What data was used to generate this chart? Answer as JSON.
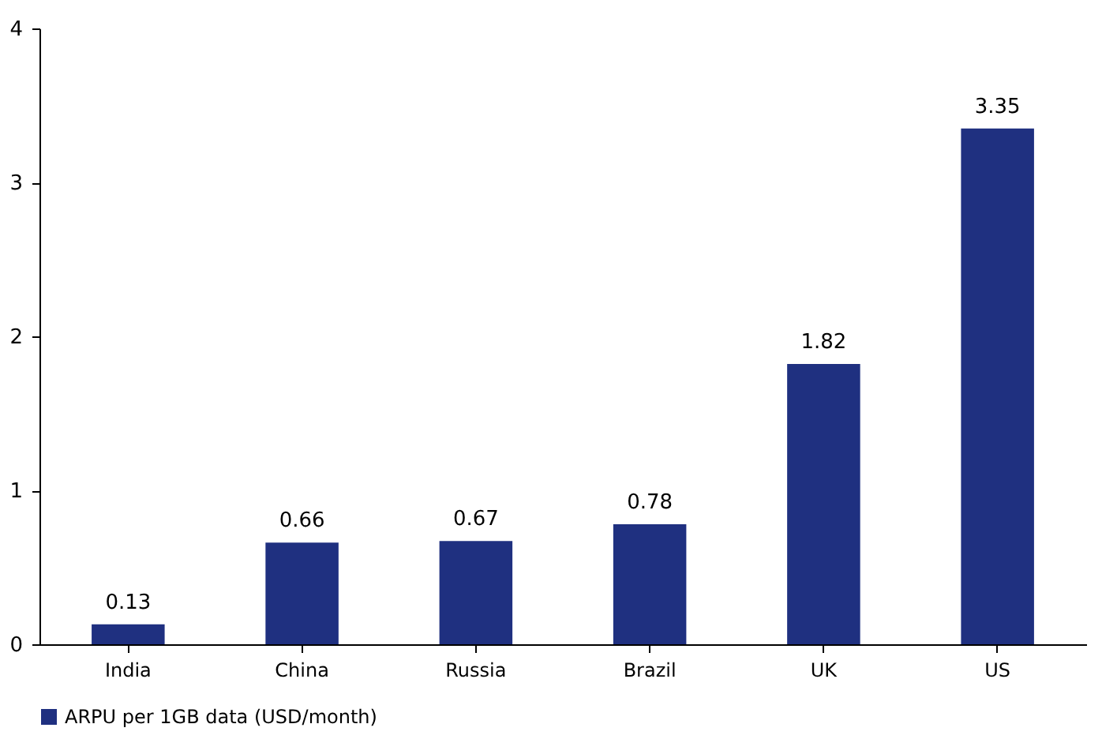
{
  "chart_data": {
    "type": "bar",
    "categories": [
      "India",
      "China",
      "Russia",
      "Brazil",
      "UK",
      "US"
    ],
    "series": [
      {
        "name": "ARPU per 1GB data (USD/month)",
        "color": "#1f3080",
        "values": [
          0.13,
          0.66,
          0.67,
          0.78,
          1.82,
          3.35
        ]
      }
    ],
    "ylim": [
      0,
      4
    ],
    "yticks": [
      0,
      1,
      2,
      3,
      4
    ],
    "grid": false,
    "legend": "bottom",
    "data_labels": true
  }
}
